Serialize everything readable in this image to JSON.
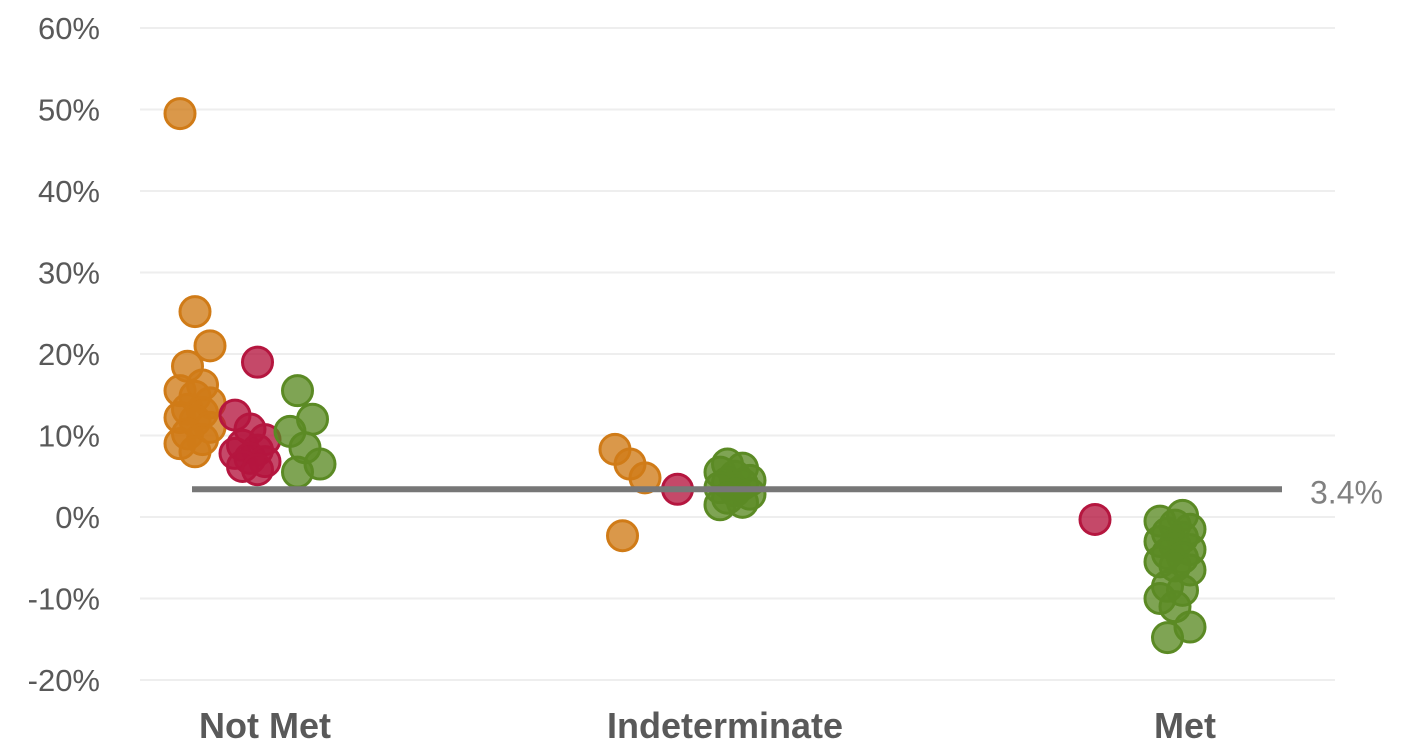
{
  "chart_data": {
    "type": "scatter",
    "title": "",
    "xlabel": "",
    "ylabel": "",
    "categories": [
      "Not Met",
      "Indeterminate",
      "Met"
    ],
    "y_axis": {
      "min": -20,
      "max": 60,
      "step": 10,
      "tick_labels": [
        "-20%",
        "-10%",
        "0%",
        "10%",
        "20%",
        "30%",
        "40%",
        "50%",
        "60%"
      ]
    },
    "grid": true,
    "legend": "none",
    "reference_line": {
      "value": 3.4,
      "label": "3.4%"
    },
    "colors": {
      "orange": "#D07B17",
      "red": "#B5163F",
      "green": "#5B8A24",
      "reference": "#777777"
    },
    "groups": [
      {
        "category": "Not Met",
        "clusters": [
          {
            "color": "orange",
            "values": [
              49.5,
              25.2,
              21.0,
              18.5,
              16.2,
              15.5,
              14.8,
              14.0,
              13.2,
              12.8,
              12.2,
              11.8,
              11.0,
              10.2,
              9.5,
              9.0,
              8.0
            ]
          },
          {
            "color": "red",
            "values": [
              19.0,
              12.5,
              10.8,
              9.5,
              8.8,
              8.2,
              7.8,
              7.2,
              6.8,
              6.2,
              5.8
            ]
          },
          {
            "color": "green",
            "values": [
              15.5,
              12.0,
              10.5,
              8.5,
              6.5,
              5.5
            ]
          }
        ]
      },
      {
        "category": "Indeterminate",
        "clusters": [
          {
            "color": "orange",
            "values": [
              8.3,
              6.5,
              4.8,
              -2.3
            ]
          },
          {
            "color": "red",
            "values": [
              3.4
            ]
          },
          {
            "color": "green",
            "values": [
              6.5,
              6.0,
              5.5,
              5.0,
              4.5,
              4.2,
              4.0,
              3.6,
              3.2,
              2.8,
              2.3,
              1.8,
              1.5
            ]
          }
        ]
      },
      {
        "category": "Met",
        "clusters": [
          {
            "color": "red",
            "values": [
              -0.3
            ]
          },
          {
            "color": "green",
            "values": [
              0.2,
              -0.5,
              -1.0,
              -1.5,
              -2.0,
              -2.5,
              -3.0,
              -3.5,
              -4.0,
              -4.5,
              -5.0,
              -5.5,
              -6.0,
              -6.5,
              -8.5,
              -9.0,
              -10.0,
              -11.0,
              -13.5,
              -14.8
            ]
          }
        ]
      }
    ]
  }
}
